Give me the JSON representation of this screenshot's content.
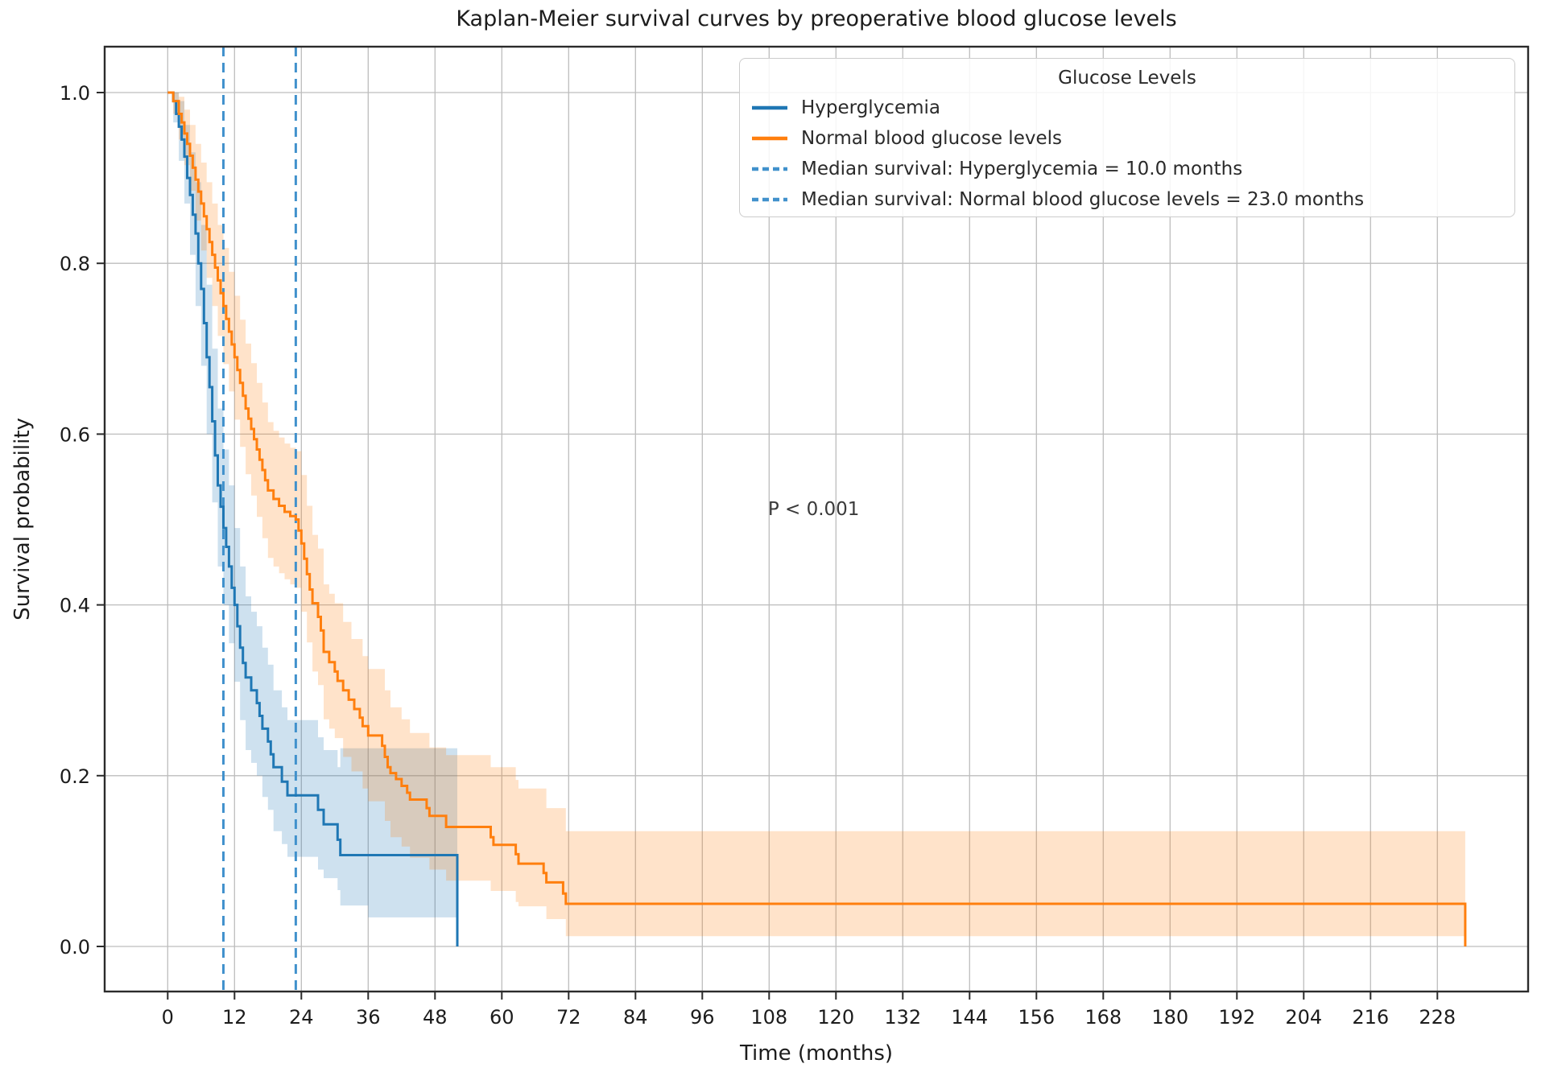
{
  "title": "Kaplan-Meier survival curves by preoperative blood glucose levels",
  "axes": {
    "xlabel": "Time (months)",
    "ylabel": "Survival probability",
    "x_ticks": [
      0,
      12,
      24,
      36,
      48,
      60,
      72,
      84,
      96,
      108,
      120,
      132,
      144,
      156,
      168,
      180,
      192,
      204,
      216,
      228
    ],
    "y_ticks": [
      0.0,
      0.2,
      0.4,
      0.6,
      0.8,
      1.0
    ],
    "y_tick_labels": [
      "0.0",
      "0.2",
      "0.4",
      "0.6",
      "0.8",
      "1.0"
    ]
  },
  "legend": {
    "title": "Glucose Levels",
    "entries": [
      {
        "label": "Hyperglycemia",
        "color": "#1f77b4",
        "style": "solid"
      },
      {
        "label": "Normal blood glucose levels",
        "color": "#ff7f0e",
        "style": "solid"
      },
      {
        "label": "Median survival: Hyperglycemia = 10.0 months",
        "color": "#4191cc",
        "style": "dashed"
      },
      {
        "label": "Median survival: Normal blood glucose levels = 23.0 months",
        "color": "#4191cc",
        "style": "dashed"
      }
    ]
  },
  "chart_data": {
    "type": "line",
    "subtype": "kaplan-meier-step",
    "title": "Kaplan-Meier survival curves by preoperative blood glucose levels",
    "xlabel": "Time (months)",
    "ylabel": "Survival probability",
    "xlim": [
      -11.3,
      244.3
    ],
    "ylim": [
      -0.053,
      1.054
    ],
    "grid": true,
    "legend_position": "upper right",
    "annotation": {
      "text": "P < 0.001",
      "t": 116,
      "v": 0.512
    },
    "medians": [
      {
        "series": "Hyperglycemia",
        "months": 10.0
      },
      {
        "series": "Normal blood glucose levels",
        "months": 23.0
      }
    ],
    "median_line_color": "#4191cc",
    "series": [
      {
        "name": "Hyperglycemia",
        "color": "#1f77b4",
        "steps": [
          [
            0,
            1.0
          ],
          [
            1,
            0.99
          ],
          [
            1.5,
            0.975
          ],
          [
            2,
            0.96
          ],
          [
            2.5,
            0.945
          ],
          [
            3,
            0.925
          ],
          [
            3.5,
            0.9
          ],
          [
            4,
            0.88
          ],
          [
            4.5,
            0.857
          ],
          [
            5,
            0.835
          ],
          [
            5.5,
            0.8
          ],
          [
            6,
            0.77
          ],
          [
            6.5,
            0.73
          ],
          [
            7,
            0.69
          ],
          [
            7.5,
            0.655
          ],
          [
            8,
            0.615
          ],
          [
            8.5,
            0.575
          ],
          [
            9,
            0.54
          ],
          [
            9.5,
            0.515
          ],
          [
            10,
            0.49
          ],
          [
            10.5,
            0.468
          ],
          [
            11,
            0.445
          ],
          [
            11.5,
            0.42
          ],
          [
            12,
            0.4
          ],
          [
            12.5,
            0.375
          ],
          [
            13,
            0.35
          ],
          [
            13.5,
            0.332
          ],
          [
            14,
            0.315
          ],
          [
            15,
            0.3
          ],
          [
            16,
            0.285
          ],
          [
            16.5,
            0.27
          ],
          [
            17,
            0.255
          ],
          [
            18,
            0.24
          ],
          [
            18.5,
            0.225
          ],
          [
            19,
            0.21
          ],
          [
            20.5,
            0.193
          ],
          [
            21.5,
            0.177
          ],
          [
            27,
            0.16
          ],
          [
            28,
            0.143
          ],
          [
            30.5,
            0.125
          ],
          [
            31,
            0.107
          ],
          [
            52,
            0.107
          ],
          [
            52,
            0
          ]
        ],
        "band": [
          [
            0,
            1,
            1
          ],
          [
            1,
            0.965,
            1
          ],
          [
            2,
            0.92,
            0.99
          ],
          [
            3,
            0.87,
            0.962
          ],
          [
            4,
            0.81,
            0.93
          ],
          [
            5,
            0.75,
            0.895
          ],
          [
            6,
            0.68,
            0.845
          ],
          [
            7,
            0.6,
            0.775
          ],
          [
            8,
            0.52,
            0.7
          ],
          [
            9,
            0.445,
            0.63
          ],
          [
            10,
            0.4,
            0.582
          ],
          [
            11,
            0.355,
            0.54
          ],
          [
            12,
            0.31,
            0.49
          ],
          [
            13,
            0.265,
            0.445
          ],
          [
            14,
            0.23,
            0.41
          ],
          [
            15,
            0.215,
            0.392
          ],
          [
            16,
            0.2,
            0.375
          ],
          [
            17,
            0.175,
            0.35
          ],
          [
            18,
            0.16,
            0.33
          ],
          [
            19,
            0.135,
            0.3
          ],
          [
            20.5,
            0.12,
            0.28
          ],
          [
            21.5,
            0.105,
            0.265
          ],
          [
            27,
            0.09,
            0.245
          ],
          [
            28,
            0.08,
            0.23
          ],
          [
            30.5,
            0.066,
            0.21
          ],
          [
            31,
            0.048,
            0.232
          ],
          [
            36,
            0.034,
            0.232
          ],
          [
            52,
            0.034,
            0.232
          ]
        ]
      },
      {
        "name": "Normal blood glucose levels",
        "color": "#ff7f0e",
        "steps": [
          [
            0,
            1.0
          ],
          [
            1,
            0.99
          ],
          [
            2,
            0.975
          ],
          [
            2.5,
            0.965
          ],
          [
            3,
            0.952
          ],
          [
            3.5,
            0.94
          ],
          [
            4,
            0.926
          ],
          [
            4.5,
            0.912
          ],
          [
            5,
            0.898
          ],
          [
            5.5,
            0.884
          ],
          [
            6,
            0.87
          ],
          [
            6.5,
            0.855
          ],
          [
            7,
            0.84
          ],
          [
            7.5,
            0.825
          ],
          [
            8,
            0.81
          ],
          [
            8.5,
            0.795
          ],
          [
            9,
            0.78
          ],
          [
            9.5,
            0.765
          ],
          [
            10,
            0.75
          ],
          [
            10.5,
            0.735
          ],
          [
            11,
            0.72
          ],
          [
            11.5,
            0.705
          ],
          [
            12,
            0.69
          ],
          [
            12.5,
            0.675
          ],
          [
            13,
            0.66
          ],
          [
            13.5,
            0.645
          ],
          [
            14,
            0.63
          ],
          [
            14.5,
            0.618
          ],
          [
            15,
            0.606
          ],
          [
            15.5,
            0.594
          ],
          [
            16,
            0.582
          ],
          [
            16.5,
            0.57
          ],
          [
            17,
            0.558
          ],
          [
            17.5,
            0.546
          ],
          [
            18,
            0.534
          ],
          [
            19,
            0.524
          ],
          [
            20,
            0.516
          ],
          [
            21,
            0.509
          ],
          [
            22,
            0.504
          ],
          [
            23,
            0.5
          ],
          [
            23.5,
            0.487
          ],
          [
            24,
            0.472
          ],
          [
            24.5,
            0.454
          ],
          [
            25,
            0.436
          ],
          [
            25.5,
            0.418
          ],
          [
            26,
            0.402
          ],
          [
            27,
            0.386
          ],
          [
            27.5,
            0.37
          ],
          [
            28,
            0.345
          ],
          [
            29,
            0.333
          ],
          [
            30,
            0.322
          ],
          [
            30.5,
            0.311
          ],
          [
            31.5,
            0.3
          ],
          [
            32.5,
            0.289
          ],
          [
            33.5,
            0.278
          ],
          [
            34.5,
            0.268
          ],
          [
            35,
            0.258
          ],
          [
            36,
            0.247
          ],
          [
            38.5,
            0.235
          ],
          [
            39,
            0.222
          ],
          [
            39.5,
            0.21
          ],
          [
            40,
            0.203
          ],
          [
            41,
            0.196
          ],
          [
            42,
            0.188
          ],
          [
            43,
            0.18
          ],
          [
            43.5,
            0.172
          ],
          [
            46.5,
            0.162
          ],
          [
            47,
            0.153
          ],
          [
            50,
            0.14
          ],
          [
            58,
            0.128
          ],
          [
            58.5,
            0.119
          ],
          [
            62.5,
            0.108
          ],
          [
            63,
            0.097
          ],
          [
            67.5,
            0.086
          ],
          [
            68,
            0.075
          ],
          [
            71,
            0.062
          ],
          [
            71.5,
            0.05
          ],
          [
            233,
            0.05
          ],
          [
            233,
            0
          ]
        ],
        "band": [
          [
            0,
            1,
            1
          ],
          [
            1,
            0.975,
            1
          ],
          [
            2,
            0.945,
            0.995
          ],
          [
            3,
            0.915,
            0.98
          ],
          [
            4,
            0.885,
            0.962
          ],
          [
            5,
            0.85,
            0.94
          ],
          [
            6,
            0.815,
            0.918
          ],
          [
            7,
            0.783,
            0.895
          ],
          [
            8,
            0.75,
            0.87
          ],
          [
            9,
            0.715,
            0.845
          ],
          [
            10,
            0.682,
            0.818
          ],
          [
            11,
            0.65,
            0.79
          ],
          [
            12,
            0.617,
            0.762
          ],
          [
            13,
            0.585,
            0.734
          ],
          [
            14,
            0.553,
            0.706
          ],
          [
            15,
            0.528,
            0.683
          ],
          [
            16,
            0.503,
            0.66
          ],
          [
            17,
            0.478,
            0.637
          ],
          [
            18,
            0.455,
            0.614
          ],
          [
            19,
            0.445,
            0.604
          ],
          [
            20,
            0.437,
            0.596
          ],
          [
            21,
            0.43,
            0.589
          ],
          [
            22,
            0.424,
            0.584
          ],
          [
            23,
            0.42,
            0.58
          ],
          [
            24,
            0.392,
            0.552
          ],
          [
            25,
            0.356,
            0.516
          ],
          [
            26,
            0.322,
            0.482
          ],
          [
            27,
            0.306,
            0.466
          ],
          [
            28,
            0.266,
            0.424
          ],
          [
            29,
            0.255,
            0.413
          ],
          [
            30,
            0.244,
            0.402
          ],
          [
            31.5,
            0.222,
            0.38
          ],
          [
            33,
            0.205,
            0.36
          ],
          [
            35,
            0.185,
            0.34
          ],
          [
            36,
            0.17,
            0.325
          ],
          [
            39,
            0.147,
            0.3
          ],
          [
            40,
            0.128,
            0.28
          ],
          [
            42,
            0.117,
            0.266
          ],
          [
            43.5,
            0.104,
            0.25
          ],
          [
            47,
            0.09,
            0.233
          ],
          [
            50,
            0.077,
            0.224
          ],
          [
            58,
            0.065,
            0.21
          ],
          [
            62.5,
            0.052,
            0.195
          ],
          [
            63,
            0.047,
            0.185
          ],
          [
            68,
            0.032,
            0.162
          ],
          [
            71.5,
            0.012,
            0.135
          ],
          [
            233,
            0.012,
            0.135
          ]
        ]
      }
    ]
  }
}
